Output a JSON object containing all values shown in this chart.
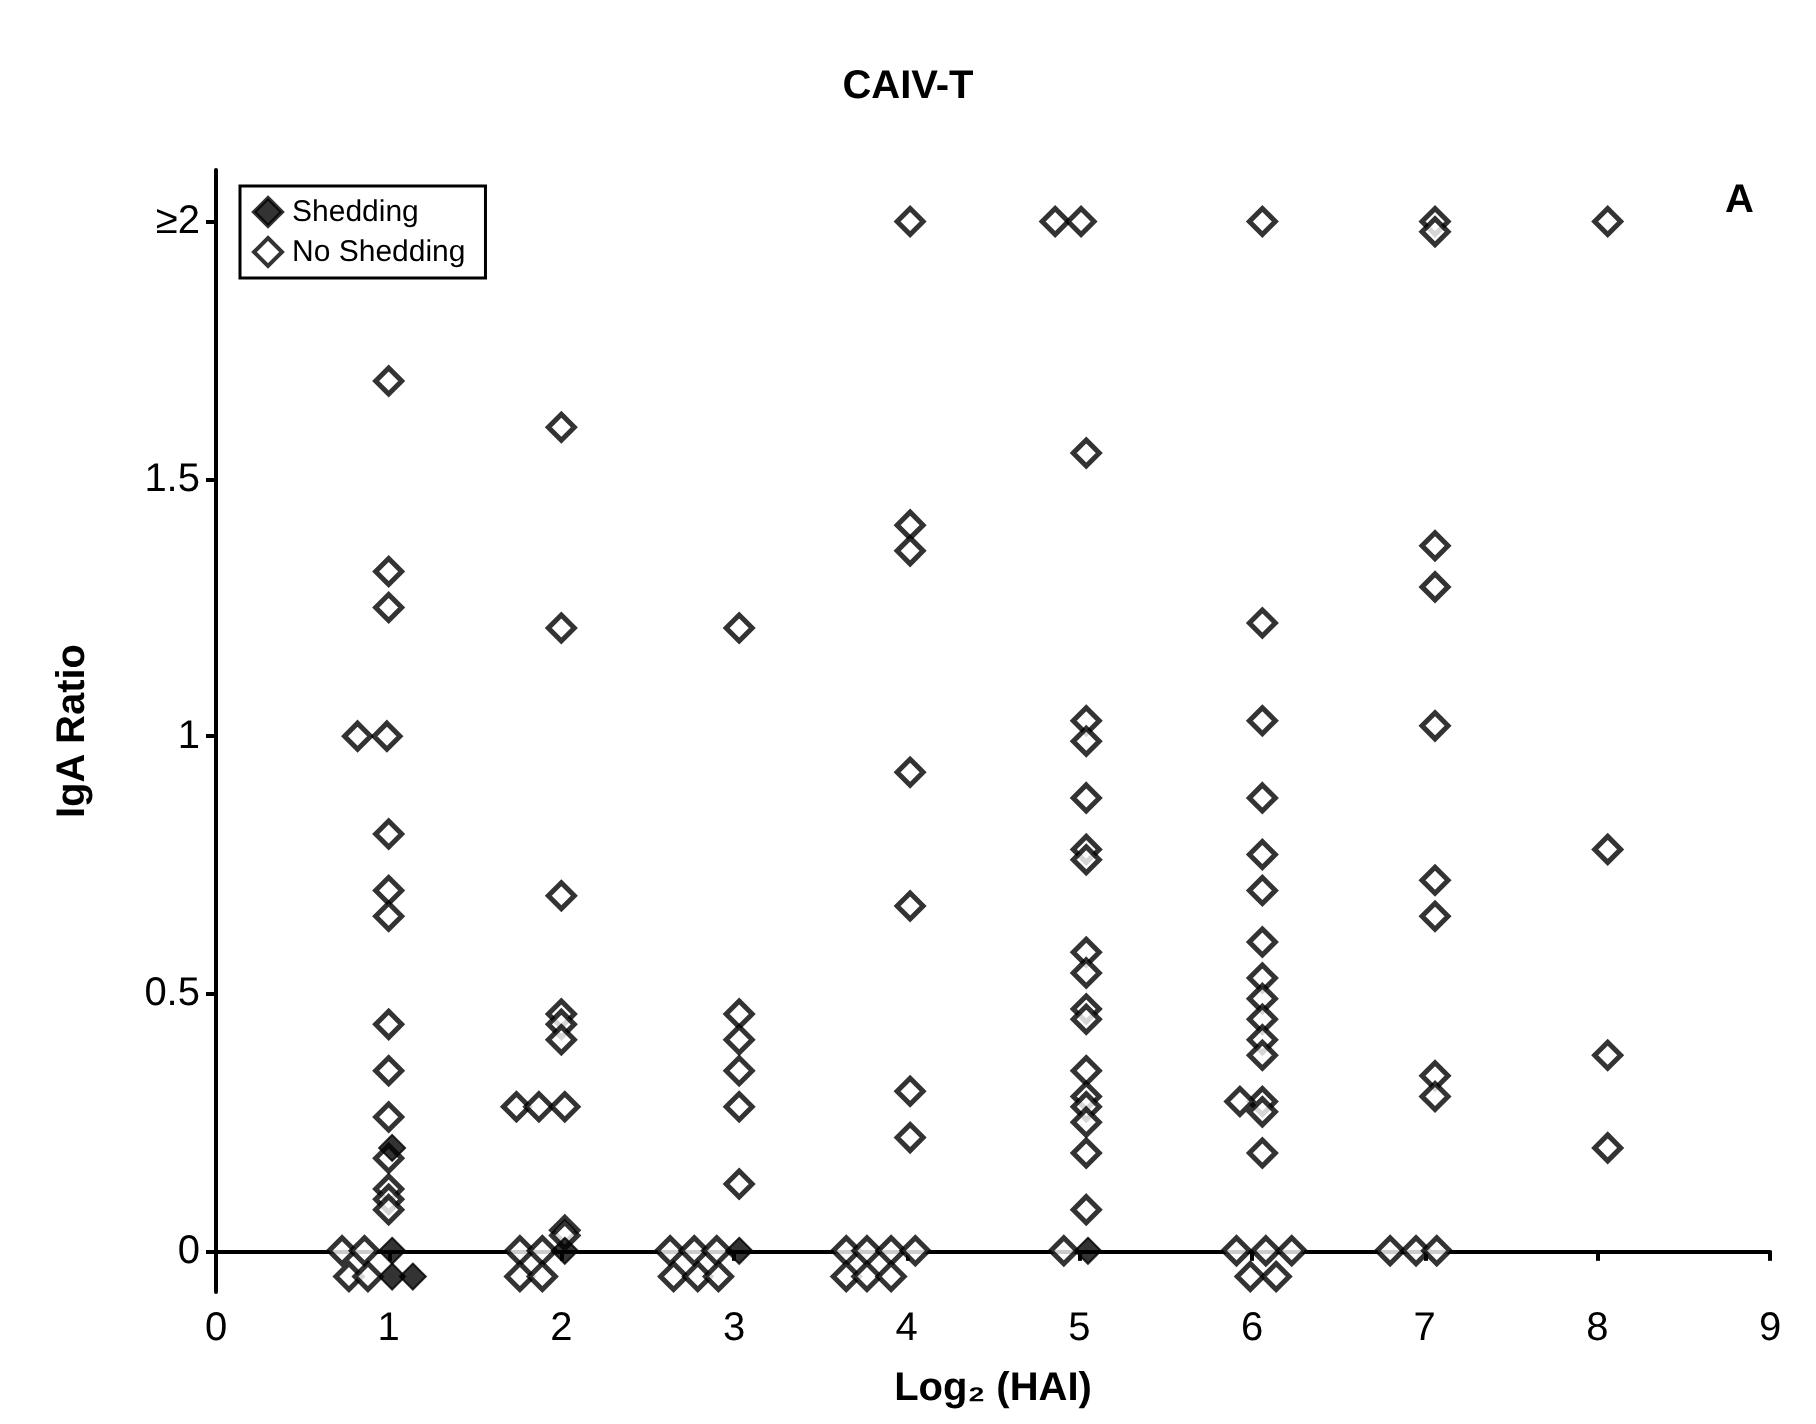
{
  "chart_data": {
    "type": "scatter",
    "title": "CAIV-T",
    "xlabel": "Log₂ (HAI)",
    "ylabel": "IgA Ratio",
    "annotations": [
      "A"
    ],
    "xlim": [
      0,
      9
    ],
    "xticks": [
      0,
      1,
      2,
      3,
      4,
      5,
      6,
      7,
      8,
      9
    ],
    "ylim": [
      -0.08,
      2.1
    ],
    "yticks": [
      0,
      0.5,
      1,
      1.5,
      {
        "value": 2,
        "label": "≥2"
      }
    ],
    "legend": "top left",
    "marker": "diamond",
    "grid": false,
    "series": [
      {
        "name": "Shedding",
        "color": "#000000",
        "x": [
          1.02,
          1.02,
          1.02,
          1.14,
          2.02,
          3.03,
          5.05
        ],
        "values": [
          0.2,
          0,
          -0.05,
          -0.05,
          0,
          0,
          0
        ]
      },
      {
        "name": "No Shedding",
        "color": "#000000",
        "x": [
          1.0,
          1.0,
          1.0,
          0.82,
          0.99,
          1.0,
          1.0,
          1.0,
          1.0,
          1.0,
          1.0,
          1.0,
          1.0,
          1.0,
          1.0,
          0.73,
          0.86,
          0.77,
          0.88,
          2.0,
          2.0,
          2.0,
          2.0,
          2.0,
          2.0,
          1.74,
          1.87,
          2.02,
          2.02,
          2.02,
          1.76,
          1.89,
          1.76,
          1.89,
          3.03,
          3.03,
          3.03,
          3.03,
          3.03,
          3.03,
          2.63,
          2.77,
          2.9,
          2.65,
          2.79,
          2.91,
          4.02,
          4.02,
          4.02,
          4.02,
          4.02,
          4.02,
          4.02,
          3.65,
          3.77,
          3.91,
          4.05,
          3.65,
          3.77,
          3.91,
          4.86,
          5.01,
          5.04,
          5.04,
          5.04,
          5.04,
          5.04,
          5.04,
          5.04,
          5.04,
          5.04,
          5.04,
          5.04,
          5.04,
          5.04,
          5.04,
          5.04,
          5.04,
          4.91,
          6.06,
          6.06,
          6.06,
          6.06,
          6.06,
          6.06,
          6.06,
          6.06,
          6.06,
          6.06,
          6.06,
          6.06,
          6.06,
          5.93,
          6.06,
          6.06,
          5.91,
          6.08,
          6.23,
          5.99,
          6.14,
          7.06,
          7.06,
          7.06,
          7.06,
          7.06,
          7.06,
          7.06,
          7.06,
          7.06,
          6.8,
          6.95,
          7.07,
          8.06,
          8.06,
          8.06,
          8.06
        ],
        "values": [
          1.69,
          1.32,
          1.25,
          1.0,
          1.0,
          0.81,
          0.7,
          0.65,
          0.44,
          0.35,
          0.26,
          0.18,
          0.12,
          0.1,
          0.08,
          0,
          0,
          -0.05,
          -0.05,
          1.6,
          1.21,
          0.69,
          0.46,
          0.44,
          0.41,
          0.28,
          0.28,
          0.28,
          0.04,
          0.03,
          0,
          0,
          -0.05,
          -0.05,
          1.21,
          0.46,
          0.41,
          0.35,
          0.28,
          0.13,
          0,
          0,
          0,
          -0.05,
          -0.05,
          -0.05,
          2,
          1.41,
          1.36,
          0.93,
          0.67,
          0.31,
          0.22,
          0,
          0,
          0,
          0,
          -0.05,
          -0.05,
          -0.05,
          2,
          2,
          1.55,
          1.03,
          0.99,
          0.88,
          0.78,
          0.76,
          0.58,
          0.54,
          0.47,
          0.45,
          0.35,
          0.3,
          0.28,
          0.25,
          0.19,
          0.08,
          0,
          2,
          1.22,
          1.03,
          0.88,
          0.77,
          0.7,
          0.6,
          0.53,
          0.49,
          0.45,
          0.41,
          0.38,
          0.29,
          0.29,
          0.27,
          0.19,
          0,
          0,
          0,
          -0.05,
          -0.05,
          2,
          1.98,
          1.37,
          1.29,
          1.02,
          0.72,
          0.65,
          0.34,
          0.3,
          0,
          0,
          0,
          2,
          0.78,
          0.38,
          0.2
        ]
      }
    ]
  }
}
